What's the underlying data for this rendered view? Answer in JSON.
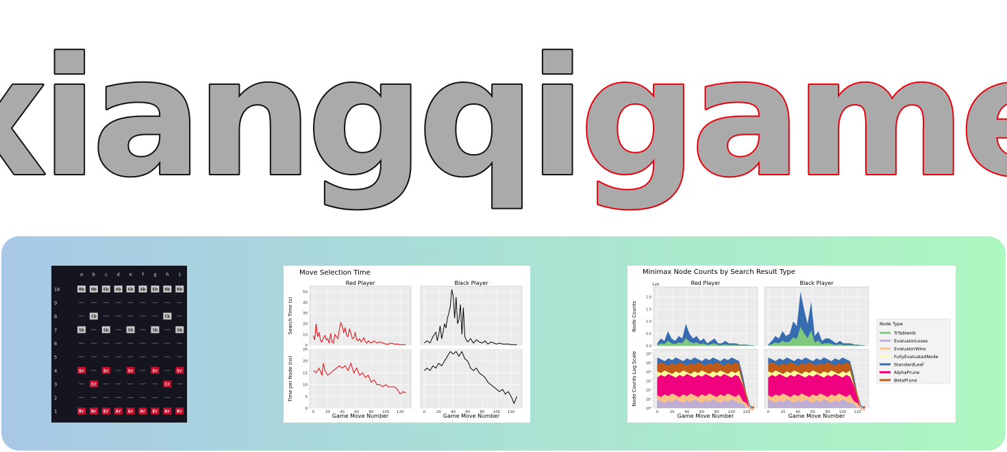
{
  "logo": {
    "word_black": "xiangqi",
    "word_red": "game",
    "fill": "#aaaaaa",
    "stroke_black": "#111111",
    "stroke_red": "#e8000b"
  },
  "board": {
    "files": [
      "a",
      "b",
      "c",
      "d",
      "e",
      "f",
      "g",
      "h",
      "i"
    ],
    "ranks": [
      {
        "label": "10",
        "cells": [
          "Rb",
          "Hb",
          "Eb",
          "Ab",
          "Gb",
          "Ab",
          "Eb",
          "Hb",
          "Rb"
        ]
      },
      {
        "label": "9",
        "cells": [
          "",
          "",
          "",
          "",
          "",
          "",
          "",
          "",
          ""
        ]
      },
      {
        "label": "8",
        "cells": [
          "",
          "Cb",
          "",
          "",
          "",
          "",
          "",
          "Cb",
          ""
        ]
      },
      {
        "label": "7",
        "cells": [
          "Sb",
          "",
          "Sb",
          "",
          "Sb",
          "",
          "Sb",
          "",
          "Sb"
        ]
      },
      {
        "label": "6",
        "cells": [
          "",
          "",
          "",
          "",
          "",
          "",
          "",
          "",
          ""
        ]
      },
      {
        "label": "5",
        "cells": [
          "",
          "",
          "",
          "",
          "",
          "",
          "",
          "",
          ""
        ]
      },
      {
        "label": "4",
        "cells": [
          "Sr",
          "",
          "Sr",
          "",
          "Sr",
          "",
          "Sr",
          "",
          "Sr"
        ]
      },
      {
        "label": "3",
        "cells": [
          "",
          "Cr",
          "",
          "",
          "",
          "",
          "",
          "Cr",
          ""
        ]
      },
      {
        "label": "2",
        "cells": [
          "",
          "",
          "",
          "",
          "",
          "",
          "",
          "",
          ""
        ]
      },
      {
        "label": "1",
        "cells": [
          "Rr",
          "Hr",
          "Er",
          "Ar",
          "Gr",
          "Ar",
          "Er",
          "Hr",
          "Rr"
        ]
      }
    ],
    "colors": {
      "background": "#15151f",
      "red_piece": "#c8102e",
      "black_piece": "#c8c8c8",
      "empty": "#666666",
      "text": "#cfcfcf"
    }
  },
  "chart_data": [
    {
      "type": "line",
      "title": "Move Selection Time",
      "subplot_titles": [
        "Red Player",
        "Black Player"
      ],
      "xlabel": "Game Move Number",
      "rows": [
        {
          "ylabel": "Search Time (s)",
          "ylim": [
            0,
            55
          ],
          "yticks": [
            0,
            10,
            20,
            30,
            40,
            50
          ],
          "series": [
            {
              "name": "Red Player",
              "color": "#e8000b",
              "x": [
                0,
                2,
                4,
                6,
                8,
                10,
                12,
                14,
                16,
                18,
                20,
                22,
                24,
                26,
                28,
                30,
                32,
                34,
                36,
                38,
                40,
                42,
                44,
                46,
                48,
                50,
                52,
                54,
                56,
                58,
                60,
                62,
                64,
                66,
                68,
                70,
                72,
                74,
                76,
                78,
                80,
                84,
                88,
                92,
                96,
                100,
                104,
                108,
                112,
                116,
                120,
                124,
                128
              ],
              "y": [
                9,
                5,
                20,
                8,
                12,
                4,
                3,
                7,
                9,
                5,
                6,
                2,
                11,
                3,
                2,
                10,
                8,
                6,
                14,
                21,
                18,
                12,
                16,
                9,
                8,
                15,
                11,
                6,
                7,
                12,
                5,
                4,
                6,
                3,
                5,
                7,
                3,
                2,
                4,
                3,
                2,
                4,
                2,
                3,
                2,
                1,
                1,
                2,
                1,
                1,
                0.5,
                0.5,
                0.5
              ]
            },
            {
              "name": "Black Player",
              "color": "#000000",
              "x": [
                0,
                4,
                8,
                12,
                16,
                18,
                20,
                22,
                24,
                26,
                28,
                30,
                32,
                34,
                36,
                38,
                40,
                42,
                44,
                46,
                48,
                50,
                52,
                54,
                56,
                58,
                60,
                64,
                68,
                72,
                76,
                80,
                84,
                88,
                92,
                96,
                100,
                104,
                108,
                112,
                116,
                120,
                124,
                128
              ],
              "y": [
                2,
                4,
                2,
                8,
                12,
                4,
                10,
                18,
                6,
                12,
                20,
                16,
                25,
                30,
                36,
                52,
                46,
                25,
                45,
                20,
                24,
                38,
                10,
                35,
                8,
                5,
                3,
                6,
                2,
                5,
                3,
                2,
                4,
                1,
                3,
                2,
                1,
                2,
                1,
                1,
                1,
                0.5,
                0.5,
                0.5
              ]
            }
          ]
        },
        {
          "ylabel": "Time per Node (ns)",
          "ylim": [
            0,
            25
          ],
          "yticks": [
            0,
            5,
            10,
            15,
            20,
            25
          ],
          "series": [
            {
              "name": "Red Player",
              "color": "#e8000b",
              "x": [
                0,
                4,
                8,
                12,
                14,
                16,
                20,
                24,
                28,
                32,
                36,
                40,
                44,
                48,
                52,
                56,
                60,
                64,
                68,
                72,
                76,
                80,
                84,
                88,
                92,
                96,
                100,
                104,
                108,
                112,
                116,
                120,
                124,
                128
              ],
              "y": [
                16,
                15,
                17,
                14,
                19,
                16,
                14,
                15,
                16,
                17,
                18,
                17,
                18,
                16,
                19,
                15,
                17,
                14,
                15,
                13,
                14,
                11,
                12,
                10,
                10,
                9,
                10,
                9,
                9,
                9,
                8,
                6,
                7,
                6.5
              ]
            },
            {
              "name": "Black Player",
              "color": "#000000",
              "x": [
                0,
                4,
                8,
                12,
                16,
                20,
                24,
                28,
                32,
                36,
                40,
                44,
                48,
                52,
                56,
                60,
                64,
                68,
                72,
                76,
                80,
                84,
                88,
                92,
                96,
                100,
                104,
                108,
                112,
                116,
                120,
                124,
                128
              ],
              "y": [
                16,
                17,
                16,
                18,
                17,
                19,
                18,
                20,
                22,
                24,
                23,
                24,
                22,
                24,
                21,
                20,
                17,
                16,
                17,
                15,
                14,
                13,
                11,
                10,
                9,
                8,
                7,
                8,
                6,
                7,
                5,
                2,
                5
              ]
            }
          ]
        }
      ],
      "xticks": [
        0,
        20,
        40,
        60,
        80,
        100,
        120
      ],
      "xlim": [
        -5,
        135
      ]
    },
    {
      "type": "area",
      "title": "Minimax Node Counts by Search Result Type",
      "subplot_titles": [
        "Red Player",
        "Black Player"
      ],
      "xlabel": "Game Move Number",
      "ylabels": [
        "Node Counts",
        "Node Counts Log Scale"
      ],
      "scale_label": "1e6",
      "yticks_linear": [
        "0.0",
        "0.5",
        "1.0",
        "1.5",
        "2.0"
      ],
      "yticks_log": [
        "10⁰",
        "10¹",
        "10²",
        "10³",
        "10⁴",
        "10⁵",
        "10⁶"
      ],
      "xticks": [
        0,
        20,
        40,
        60,
        80,
        100,
        120
      ],
      "legend_title": "Node Type",
      "legend": [
        {
          "name": "TrTableHit",
          "color": "#7fc97f"
        },
        {
          "name": "EvaluatorLoses",
          "color": "#beaed4"
        },
        {
          "name": "EvaluatorWins",
          "color": "#fdc086"
        },
        {
          "name": "FullyEvaluatedNode",
          "color": "#ffff99"
        },
        {
          "name": "StandardLeaf",
          "color": "#386cb0"
        },
        {
          "name": "AlphaPrune",
          "color": "#f0027f"
        },
        {
          "name": "BetaPrune",
          "color": "#bf5b17"
        }
      ],
      "linear_totals_red": [
        0.1,
        0.3,
        0.2,
        0.6,
        0.3,
        0.2,
        0.4,
        0.3,
        0.9,
        0.5,
        0.3,
        0.4,
        0.2,
        0.3,
        0.1,
        0.2,
        0.3,
        0.1,
        0.1,
        0.2,
        0.1,
        0.1,
        0.1,
        0.05,
        0.05,
        0.05,
        0.02,
        0.02
      ],
      "linear_totals_black": [
        0.05,
        0.2,
        0.4,
        0.3,
        0.6,
        0.4,
        0.5,
        1.0,
        0.8,
        2.2,
        1.5,
        0.9,
        1.8,
        0.4,
        0.6,
        0.2,
        0.3,
        0.3,
        0.2,
        0.1,
        0.2,
        0.1,
        0.1,
        0.1,
        0.05,
        0.05,
        0.02,
        0.02
      ]
    }
  ]
}
